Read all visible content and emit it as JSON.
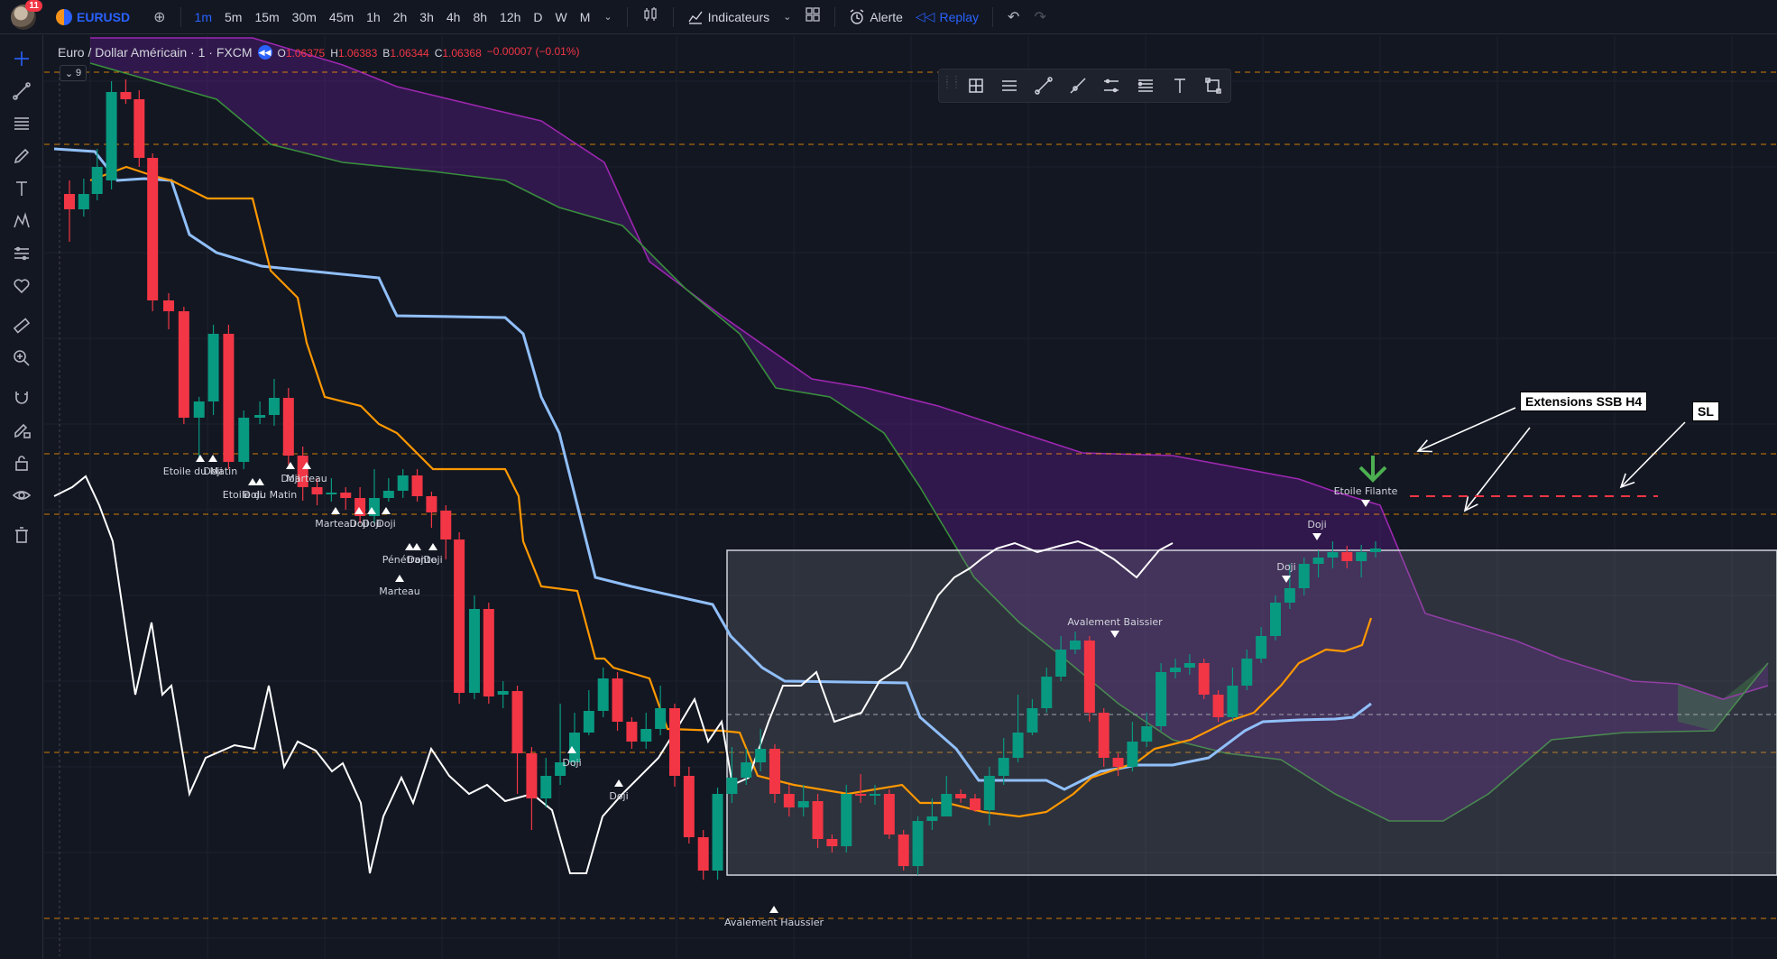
{
  "toolbar": {
    "notifications": "11",
    "symbol": "EURUSD",
    "timeframes": [
      "1m",
      "5m",
      "15m",
      "30m",
      "45m",
      "1h",
      "2h",
      "3h",
      "4h",
      "8h",
      "12h",
      "D",
      "W",
      "M"
    ],
    "active_timeframe": "1m",
    "indicators_label": "Indicateurs",
    "alert_label": "Alerte",
    "replay_label": "Replay"
  },
  "legend": {
    "title": "Euro / Dollar Américain · 1 · FXCM",
    "open_label": "O",
    "open": "1.06375",
    "high_label": "H",
    "high": "1.06383",
    "low_label": "B",
    "low": "1.06344",
    "close_label": "C",
    "close": "1.06368",
    "change": "−0.00007 (−0.01%)",
    "collapse_count": "9"
  },
  "annotations": {
    "extensions": "Extensions SSB H4",
    "sl": "SL"
  },
  "patterns": [
    {
      "text": "Etoile du Matin"
    },
    {
      "text": "Doji"
    },
    {
      "text": "Etoile du Matin"
    },
    {
      "text": "Doji"
    },
    {
      "text": "Doji"
    },
    {
      "text": "Marteau"
    },
    {
      "text": "Marteau"
    },
    {
      "text": "Doji"
    },
    {
      "text": "Doji"
    },
    {
      "text": "Doji"
    },
    {
      "text": "Pénétrante"
    },
    {
      "text": "Doji"
    },
    {
      "text": "Doji"
    },
    {
      "text": "Marteau"
    },
    {
      "text": "Doji"
    },
    {
      "text": "Doji"
    },
    {
      "text": "Avalement Haussier"
    },
    {
      "text": "Avalement Baissier"
    },
    {
      "text": "Doji"
    },
    {
      "text": "Doji"
    },
    {
      "text": "Etoile Filante"
    }
  ],
  "colors": {
    "bull": "#089981",
    "bear": "#f23645",
    "kijun": "#90bff9",
    "tenkan": "#ff9800",
    "chikou": "#ffffff",
    "ssa": "#388e3c",
    "ssb": "#9c27b0",
    "cloud_bear": "#6a1b9a",
    "cloud_bull": "#2e7d32",
    "level": "#ff9800",
    "sl": "#f23645",
    "arrow": "#4caf50",
    "accent": "#2962ff"
  }
}
